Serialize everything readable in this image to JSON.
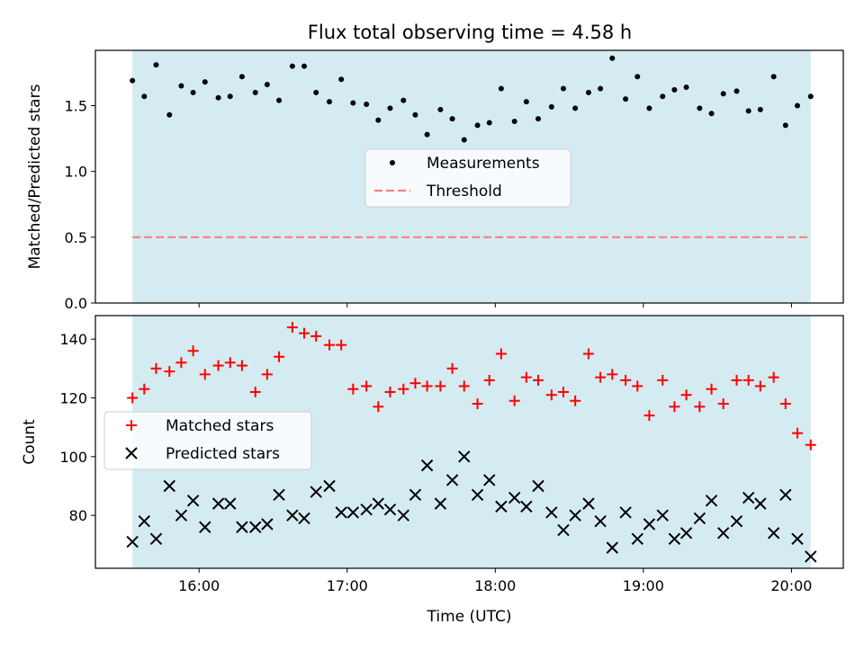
{
  "figure_title": "Flux total observing time = 4.58 h",
  "shared_x": {
    "xlabel": "Time (UTC)",
    "xlim_hours": [
      15.3,
      20.35
    ],
    "ticks": [
      16,
      17,
      18,
      19,
      20
    ],
    "tick_labels": [
      "16:00",
      "17:00",
      "18:00",
      "19:00",
      "20:00"
    ],
    "shaded_span_hours": [
      15.55,
      20.13
    ],
    "span_color": "#add8e6"
  },
  "chart_data": [
    {
      "type": "scatter",
      "panel": "top",
      "title": "Flux total observing time = 4.58 h",
      "ylabel": "Matched/Predicted stars",
      "ylim": [
        0,
        1.92
      ],
      "yticks": [
        0.0,
        0.5,
        1.0,
        1.5
      ],
      "ytick_labels": [
        "0.0",
        "0.5",
        "1.0",
        "1.5"
      ],
      "legend_position": "center",
      "series": [
        {
          "name": "Measurements",
          "marker": "dot",
          "color": "#000000",
          "x_hours": [
            15.55,
            15.63,
            15.71,
            15.8,
            15.88,
            15.96,
            16.04,
            16.13,
            16.21,
            16.29,
            16.38,
            16.46,
            16.54,
            16.63,
            16.71,
            16.79,
            16.88,
            16.96,
            17.04,
            17.13,
            17.21,
            17.29,
            17.38,
            17.46,
            17.54,
            17.63,
            17.71,
            17.79,
            17.88,
            17.96,
            18.04,
            18.13,
            18.21,
            18.29,
            18.38,
            18.46,
            18.54,
            18.63,
            18.71,
            18.79,
            18.88,
            18.96,
            19.04,
            19.13,
            19.21,
            19.29,
            19.38,
            19.46,
            19.54,
            19.63,
            19.71,
            19.79,
            19.88,
            19.96,
            20.04,
            20.13
          ],
          "y": [
            1.69,
            1.57,
            1.81,
            1.43,
            1.65,
            1.6,
            1.68,
            1.56,
            1.57,
            1.72,
            1.6,
            1.66,
            1.54,
            1.8,
            1.8,
            1.6,
            1.53,
            1.7,
            1.52,
            1.51,
            1.39,
            1.48,
            1.54,
            1.43,
            1.28,
            1.47,
            1.4,
            1.24,
            1.35,
            1.37,
            1.63,
            1.38,
            1.53,
            1.4,
            1.49,
            1.63,
            1.48,
            1.6,
            1.63,
            1.86,
            1.55,
            1.72,
            1.48,
            1.57,
            1.62,
            1.64,
            1.48,
            1.44,
            1.59,
            1.61,
            1.46,
            1.47,
            1.72,
            1.35,
            1.5,
            1.57
          ]
        },
        {
          "name": "Threshold",
          "style": "dashed",
          "color": "#ff7f7f",
          "y_constant": 0.5,
          "x_range_hours": [
            15.55,
            20.13
          ]
        }
      ]
    },
    {
      "type": "scatter",
      "panel": "bottom",
      "xlabel": "Time (UTC)",
      "ylabel": "Count",
      "ylim": [
        62,
        148
      ],
      "yticks": [
        80,
        100,
        120,
        140
      ],
      "ytick_labels": [
        "80",
        "100",
        "120",
        "140"
      ],
      "legend_position": "center-left",
      "series": [
        {
          "name": "Matched stars",
          "marker": "plus",
          "color": "#ff0000",
          "x_hours": [
            15.55,
            15.63,
            15.71,
            15.8,
            15.88,
            15.96,
            16.04,
            16.13,
            16.21,
            16.29,
            16.38,
            16.46,
            16.54,
            16.63,
            16.71,
            16.79,
            16.88,
            16.96,
            17.04,
            17.13,
            17.21,
            17.29,
            17.38,
            17.46,
            17.54,
            17.63,
            17.71,
            17.79,
            17.88,
            17.96,
            18.04,
            18.13,
            18.21,
            18.29,
            18.38,
            18.46,
            18.54,
            18.63,
            18.71,
            18.79,
            18.88,
            18.96,
            19.04,
            19.13,
            19.21,
            19.29,
            19.38,
            19.46,
            19.54,
            19.63,
            19.71,
            19.79,
            19.88,
            19.96,
            20.04,
            20.13
          ],
          "y": [
            120,
            123,
            130,
            129,
            132,
            136,
            128,
            131,
            132,
            131,
            122,
            128,
            134,
            144,
            142,
            141,
            138,
            138,
            123,
            124,
            117,
            122,
            123,
            125,
            124,
            124,
            130,
            124,
            118,
            126,
            135,
            119,
            127,
            126,
            121,
            122,
            119,
            135,
            127,
            128,
            126,
            124,
            114,
            126,
            117,
            121,
            117,
            123,
            118,
            126,
            126,
            124,
            127,
            118,
            108,
            104
          ]
        },
        {
          "name": "Predicted stars",
          "marker": "x",
          "color": "#000000",
          "x_hours": [
            15.55,
            15.63,
            15.71,
            15.8,
            15.88,
            15.96,
            16.04,
            16.13,
            16.21,
            16.29,
            16.38,
            16.46,
            16.54,
            16.63,
            16.71,
            16.79,
            16.88,
            16.96,
            17.04,
            17.13,
            17.21,
            17.29,
            17.38,
            17.46,
            17.54,
            17.63,
            17.71,
            17.79,
            17.88,
            17.96,
            18.04,
            18.13,
            18.21,
            18.29,
            18.38,
            18.46,
            18.54,
            18.63,
            18.71,
            18.79,
            18.88,
            18.96,
            19.04,
            19.13,
            19.21,
            19.29,
            19.38,
            19.46,
            19.54,
            19.63,
            19.71,
            19.79,
            19.88,
            19.96,
            20.04,
            20.13
          ],
          "y": [
            71,
            78,
            72,
            90,
            80,
            85,
            76,
            84,
            84,
            76,
            76,
            77,
            87,
            80,
            79,
            88,
            90,
            81,
            81,
            82,
            84,
            82,
            80,
            87,
            97,
            84,
            92,
            100,
            87,
            92,
            83,
            86,
            83,
            90,
            81,
            75,
            80,
            84,
            78,
            69,
            81,
            72,
            77,
            80,
            72,
            74,
            79,
            85,
            74,
            78,
            86,
            84,
            74,
            87,
            72,
            66
          ]
        }
      ]
    }
  ]
}
